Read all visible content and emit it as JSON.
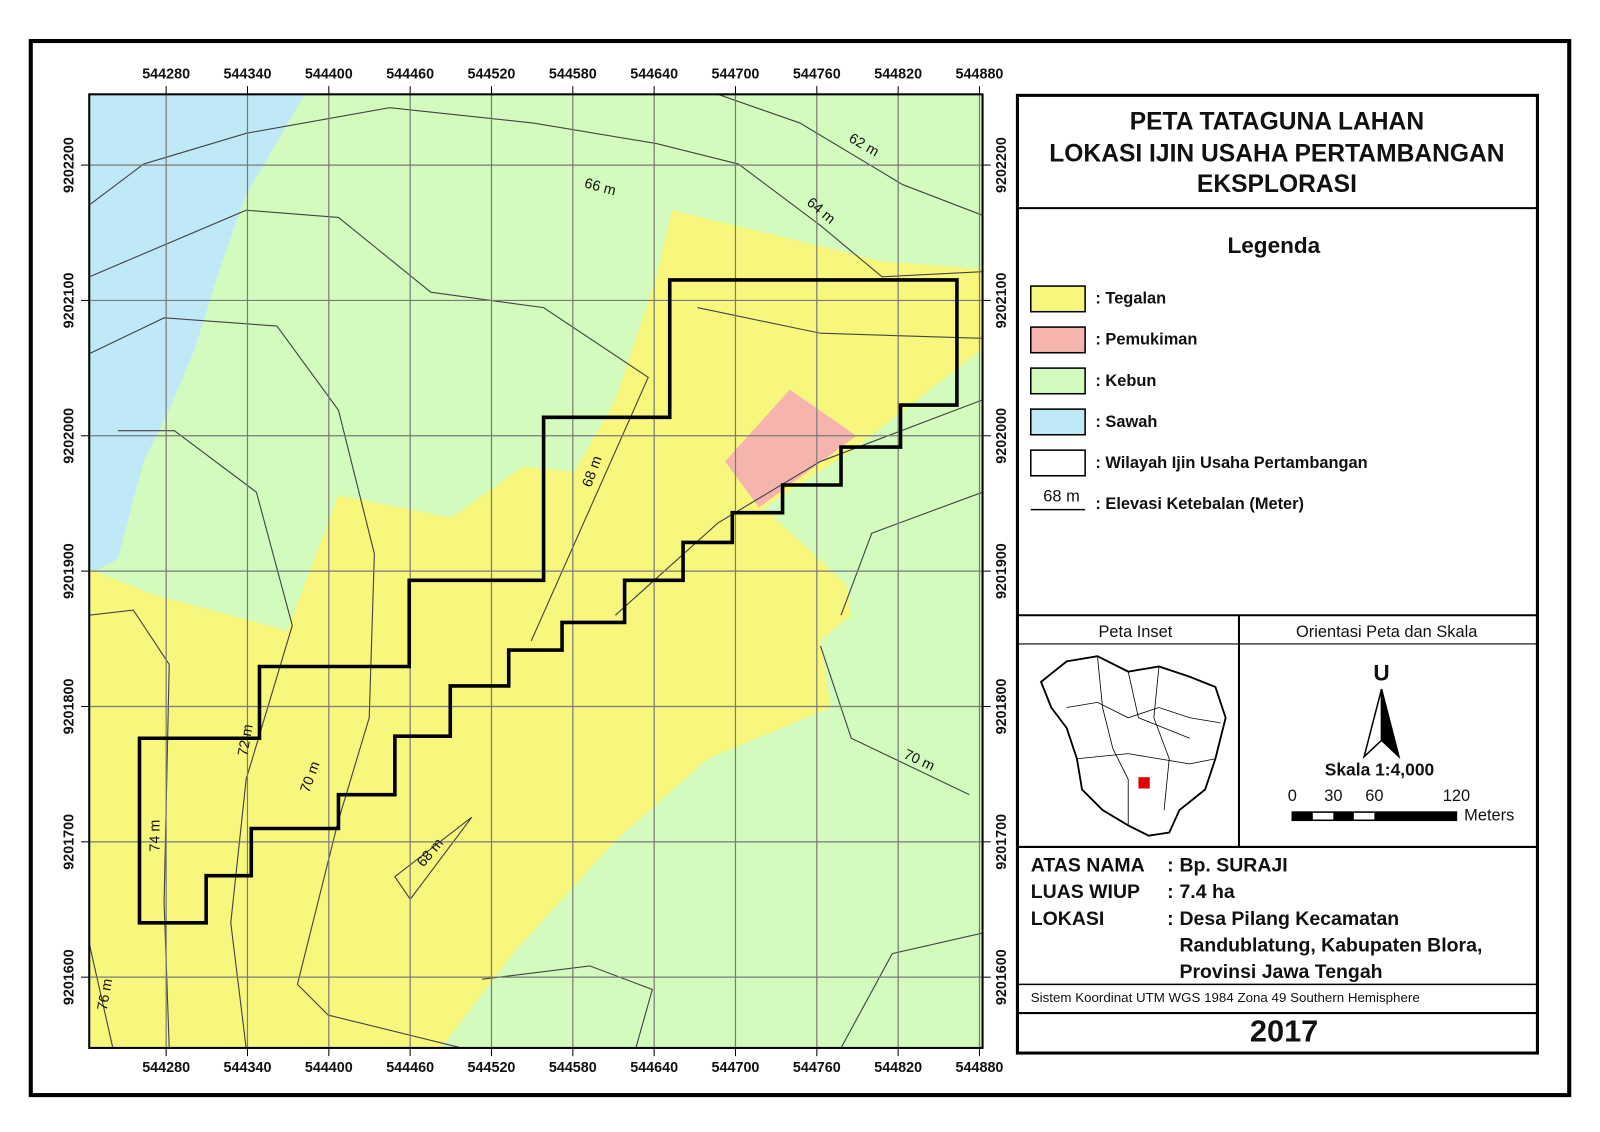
{
  "map": {
    "x_labels": [
      "544280",
      "544340",
      "544400",
      "544460",
      "544520",
      "544580",
      "544640",
      "544700",
      "544760",
      "544820",
      "544880"
    ],
    "y_labels": [
      "9202200",
      "9202100",
      "9202000",
      "9201900",
      "9201800",
      "9201700",
      "9201600"
    ],
    "contour_labels": [
      "62 m",
      "64 m",
      "66 m",
      "68 m",
      "68 m",
      "70 m",
      "70 m",
      "72 m",
      "74 m",
      "76 m"
    ]
  },
  "title": [
    "PETA TATAGUNA LAHAN",
    "LOKASI IJIN USAHA PERTAMBANGAN",
    "EKSPLORASI"
  ],
  "legend": {
    "title": "Legenda",
    "items": [
      {
        "label": ": Tegalan",
        "color": "#f7f77e"
      },
      {
        "label": ": Pemukiman",
        "color": "#f5b4ae"
      },
      {
        "label": ": Kebun",
        "color": "#d3fbbd"
      },
      {
        "label": ": Sawah",
        "color": "#bfe9f7"
      },
      {
        "label": ": Wilayah Ijin Usaha Pertambangan",
        "color": "#ffffff"
      }
    ],
    "elevation": {
      "sample": "68 m",
      "label": ": Elevasi Ketebalan (Meter)"
    }
  },
  "inset": {
    "title": "Peta Inset"
  },
  "orientation": {
    "title": "Orientasi Peta dan Skala",
    "north": "U",
    "scale": "Skala 1:4,000",
    "scale_ticks": [
      0,
      30,
      60,
      120
    ],
    "unit": "Meters"
  },
  "info": {
    "separator": ":",
    "rows": [
      {
        "label": "ATAS NAMA",
        "value": [
          "Bp. SURAJI"
        ]
      },
      {
        "label": "LUAS WIUP",
        "value": [
          "7.4 ha"
        ]
      },
      {
        "label": "LOKASI",
        "value": [
          "Desa Pilang Kecamatan",
          "Randublatung, Kabupaten Blora,",
          "Provinsi Jawa Tengah"
        ]
      }
    ]
  },
  "crs": "Sistem Koordinat UTM WGS 1984 Zona 49 Southern Hemisphere",
  "year": "2017"
}
